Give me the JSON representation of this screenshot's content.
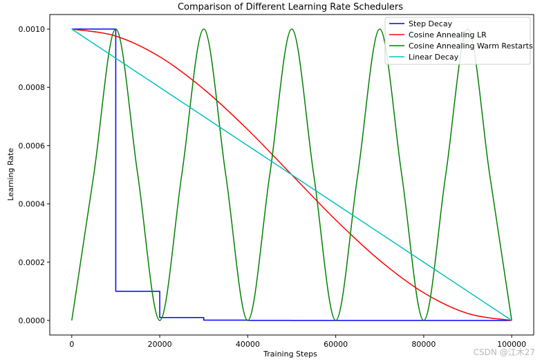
{
  "chart_data": {
    "type": "line",
    "title": "Comparison of Different Learning Rate Schedulers",
    "xlabel": "Training Steps",
    "ylabel": "Learning Rate",
    "xlim": [
      -5000,
      105000
    ],
    "ylim": [
      -5e-05,
      0.00105
    ],
    "x_ticks": [
      0,
      20000,
      40000,
      60000,
      80000,
      100000
    ],
    "x_tick_labels": [
      "0",
      "20000",
      "40000",
      "60000",
      "80000",
      "100000"
    ],
    "y_ticks": [
      0.0,
      0.0002,
      0.0004,
      0.0006,
      0.0008,
      0.001
    ],
    "y_tick_labels": [
      "0.0000",
      "0.0002",
      "0.0004",
      "0.0006",
      "0.0008",
      "0.0010"
    ],
    "grid": false,
    "legend_position": "top-right",
    "series": [
      {
        "name": "Step Decay",
        "color": "#0000ff",
        "step": true,
        "x": [
          0,
          10000,
          20000,
          30000,
          40000,
          50000,
          60000,
          70000,
          80000,
          90000,
          100000
        ],
        "y": [
          0.001,
          0.0001,
          1e-05,
          1e-06,
          1e-07,
          1e-08,
          0.0,
          0.0,
          0.0,
          0.0,
          0.0
        ]
      },
      {
        "name": "Cosine Annealing LR",
        "color": "#ff0000",
        "x": [
          0,
          10000,
          20000,
          30000,
          40000,
          50000,
          60000,
          70000,
          80000,
          90000,
          100000
        ],
        "y": [
          0.001,
          0.000976,
          0.000905,
          0.000794,
          0.000655,
          0.0005,
          0.000345,
          0.000206,
          9.5e-05,
          2.4e-05,
          0.0
        ]
      },
      {
        "name": "Cosine Annealing Warm Restarts",
        "color": "#008000",
        "x": [
          0,
          5000,
          10000,
          15000,
          20000,
          25000,
          30000,
          35000,
          40000,
          45000,
          50000,
          55000,
          60000,
          65000,
          70000,
          75000,
          80000,
          85000,
          90000,
          95000,
          100000
        ],
        "y": [
          0.0,
          0.0005,
          0.001,
          0.0005,
          0.0,
          0.0005,
          0.001,
          0.0005,
          0.0,
          0.0005,
          0.001,
          0.0005,
          0.0,
          0.0005,
          0.001,
          0.0005,
          0.0,
          0.0005,
          0.001,
          0.0005,
          0.0
        ]
      },
      {
        "name": "Linear Decay",
        "color": "#00bfbf",
        "x": [
          0,
          100000
        ],
        "y": [
          0.001,
          0.0
        ]
      }
    ]
  },
  "watermark": "CSDN @江木27"
}
